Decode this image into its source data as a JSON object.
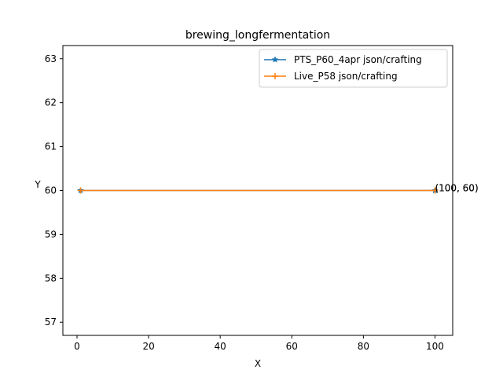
{
  "chart_data": {
    "type": "line",
    "title": "brewing_longfermentation",
    "xlabel": "X",
    "ylabel": "Y",
    "xlim": [
      -3.95,
      104.95
    ],
    "ylim": [
      56.7,
      63.3
    ],
    "xticks": [
      0,
      20,
      40,
      60,
      80,
      100
    ],
    "yticks": [
      57,
      58,
      59,
      60,
      61,
      62,
      63
    ],
    "grid": false,
    "legend_position": "upper right",
    "series": [
      {
        "name": "PTS_P60_4apr json/crafting",
        "color": "#1f77b4",
        "marker": "star",
        "x": [
          1,
          100
        ],
        "y": [
          60,
          60
        ]
      },
      {
        "name": "Live_P58 json/crafting",
        "color": "#ff7f0e",
        "marker": "plus",
        "x": [
          1,
          100
        ],
        "y": [
          60,
          60
        ]
      }
    ],
    "annotations": [
      {
        "text": "(100, 60)",
        "x": 100,
        "y": 60
      },
      {
        "text": "(100, 60)",
        "x": 100,
        "y": 60
      }
    ]
  }
}
